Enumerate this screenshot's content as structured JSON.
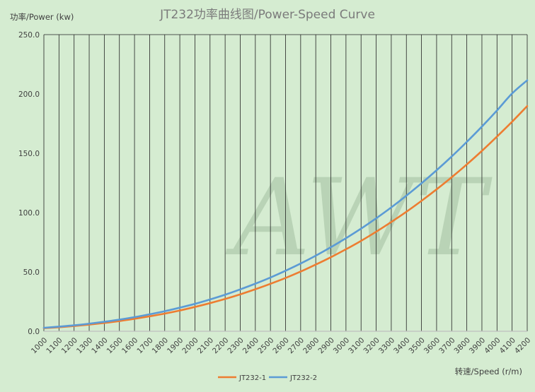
{
  "chart_data": {
    "type": "line",
    "title": "JT232功率曲线图/Power-Speed Curve",
    "ylabel": "功率/Power (kw)",
    "xlabel": "转速/Speed (r/m)",
    "ylim": [
      0,
      250
    ],
    "yticks": [
      "0.0",
      "50.0",
      "100.0",
      "150.0",
      "200.0",
      "250.0"
    ],
    "x": [
      1000,
      1100,
      1200,
      1300,
      1400,
      1500,
      1600,
      1700,
      1800,
      1900,
      2000,
      2100,
      2200,
      2300,
      2400,
      2500,
      2600,
      2700,
      2800,
      2900,
      3000,
      3100,
      3200,
      3300,
      3400,
      3500,
      3600,
      3700,
      3800,
      3900,
      4000,
      4100,
      4200
    ],
    "series": [
      {
        "name": "JT232-1",
        "color": "#ed7d31",
        "values": [
          2.6,
          3.4,
          4.4,
          5.6,
          7.0,
          8.6,
          10.5,
          12.6,
          14.9,
          17.5,
          20.5,
          23.7,
          27.2,
          31.1,
          35.4,
          40.0,
          44.9,
          50.3,
          56.2,
          62.4,
          69.1,
          76.2,
          83.9,
          92.1,
          100.7,
          109.9,
          119.6,
          129.8,
          140.6,
          152.0,
          164.1,
          176.6,
          189.8
        ]
      },
      {
        "name": "JT232-2",
        "color": "#5b9bd5",
        "values": [
          2.9,
          3.9,
          5.0,
          6.4,
          8.0,
          9.8,
          11.9,
          14.3,
          16.9,
          19.9,
          23.1,
          26.8,
          30.8,
          35.3,
          40.1,
          45.3,
          51.0,
          57.1,
          63.7,
          70.8,
          78.4,
          86.5,
          95.2,
          104.4,
          114.3,
          124.7,
          135.7,
          147.3,
          159.6,
          172.5,
          186.1,
          200.4,
          211.5
        ]
      }
    ],
    "grid": true,
    "legend": "bottom"
  },
  "watermark": "AWT"
}
